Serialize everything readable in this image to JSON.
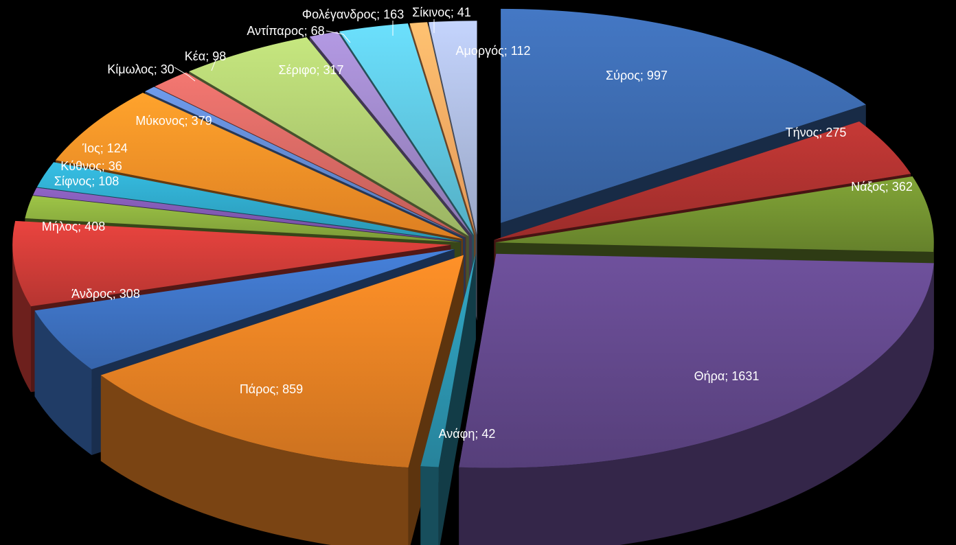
{
  "chart_data": {
    "type": "pie",
    "title": "",
    "style": "3d-exploded",
    "legend": "none",
    "label_format": "{name}; {value}",
    "slices": [
      {
        "name": "Σύρος",
        "value": 997,
        "color": "#3A66A7"
      },
      {
        "name": "Τήνος",
        "value": 275,
        "color": "#A8302E"
      },
      {
        "name": "Νάξος",
        "value": 362,
        "color": "#6E8C2F"
      },
      {
        "name": "Θήρα",
        "value": 1631,
        "color": "#5E4585"
      },
      {
        "name": "Ανάφη",
        "value": 42,
        "color": "#2A8EA8"
      },
      {
        "name": "Πάρος",
        "value": 859,
        "color": "#DD7B22"
      },
      {
        "name": "Άνδρος",
        "value": 308,
        "color": "#3B6DBA"
      },
      {
        "name": "Μήλος",
        "value": 408,
        "color": "#C63A35"
      },
      {
        "name": "Σίφνος",
        "value": 108,
        "color": "#86A73C"
      },
      {
        "name": "Κύθνος",
        "value": 36,
        "color": "#7A55A8"
      },
      {
        "name": "Ίος",
        "value": 124,
        "color": "#2EA2C2"
      },
      {
        "name": "Μύκονος",
        "value": 379,
        "color": "#F08A25"
      },
      {
        "name": "Κίμωλος",
        "value": 30,
        "color": "#5D83C8"
      },
      {
        "name": "Κέα",
        "value": 98,
        "color": "#CF6560"
      },
      {
        "name": "Σέριφο",
        "value": 317,
        "color": "#A8C46C"
      },
      {
        "name": "Αντίπαρος",
        "value": 68,
        "color": "#9882C0"
      },
      {
        "name": "Φολέγανδρος",
        "value": 163,
        "color": "#5BBED6"
      },
      {
        "name": "Σίκινος",
        "value": 41,
        "color": "#F7A460"
      },
      {
        "name": "Αμοργός",
        "value": 112,
        "color": "#A6B4D6"
      }
    ]
  }
}
